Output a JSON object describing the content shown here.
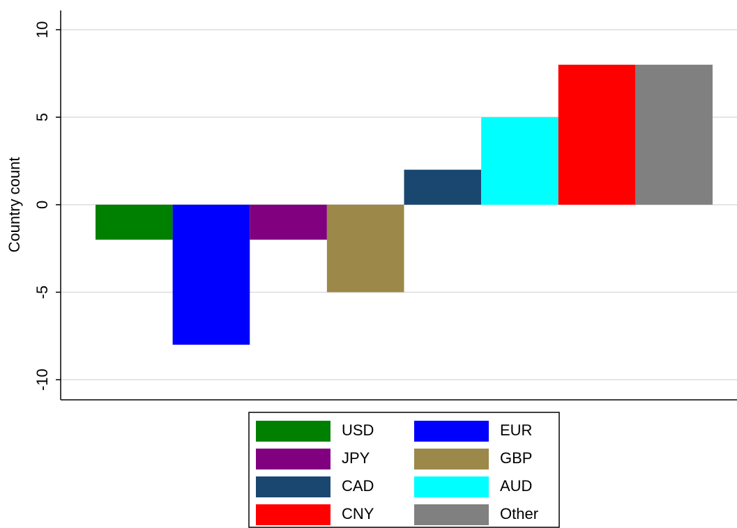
{
  "chart_data": {
    "type": "bar",
    "y_label": "Country count",
    "series": [
      {
        "name": "USD",
        "color": "#008000",
        "values": [
          -2
        ]
      },
      {
        "name": "EUR",
        "color": "#0000ff",
        "values": [
          -8
        ]
      },
      {
        "name": "JPY",
        "color": "#800080",
        "values": [
          -2
        ]
      },
      {
        "name": "GBP",
        "color": "#9c8848",
        "values": [
          -5
        ]
      },
      {
        "name": "CAD",
        "color": "#1a476f",
        "values": [
          2
        ]
      },
      {
        "name": "AUD",
        "color": "#00ffff",
        "values": [
          5
        ]
      },
      {
        "name": "CNY",
        "color": "#ff0000",
        "values": [
          8
        ]
      },
      {
        "name": "Other",
        "color": "#808080",
        "values": [
          8
        ]
      }
    ],
    "ylim": [
      -11.15,
      11.1
    ],
    "yticks": [
      -10,
      -5,
      0,
      5,
      10
    ],
    "grid": true,
    "legend": "bottom"
  }
}
